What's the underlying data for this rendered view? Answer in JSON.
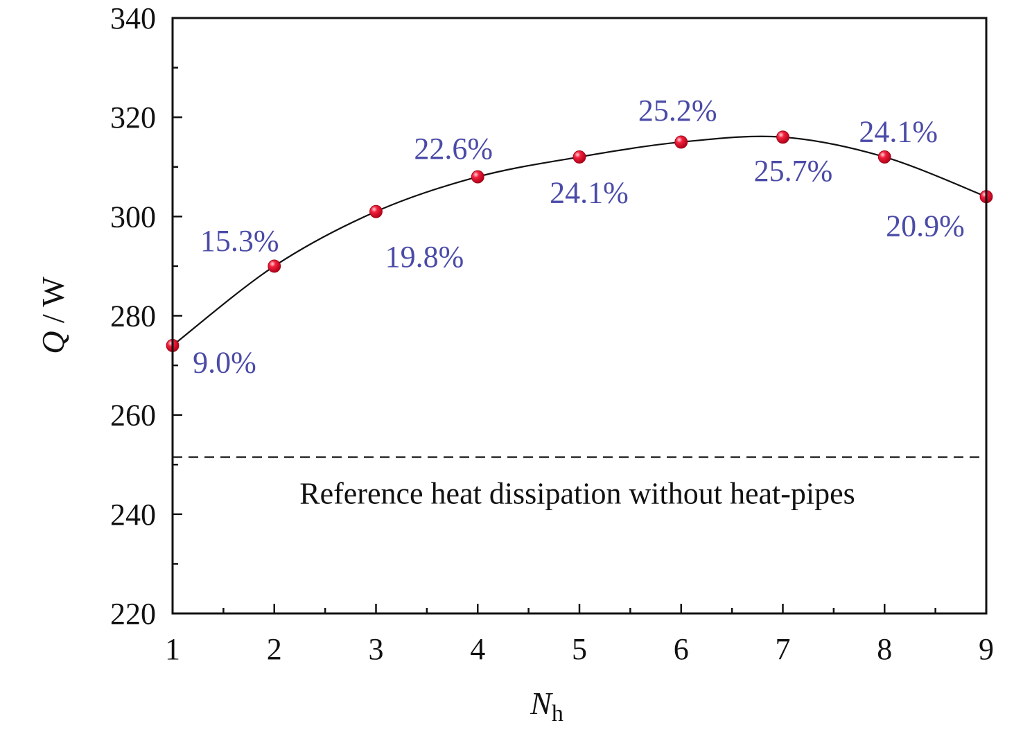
{
  "chart_data": {
    "type": "line",
    "x": [
      1,
      2,
      3,
      4,
      5,
      6,
      7,
      8,
      9
    ],
    "series": [
      {
        "values": [
          274,
          290,
          301,
          308,
          312,
          315,
          316,
          312,
          304
        ],
        "labels": [
          "9.0%",
          "15.3%",
          "19.8%",
          "22.6%",
          "24.1%",
          "25.2%",
          "25.7%",
          "24.1%",
          "20.9%"
        ]
      }
    ],
    "xlim": [
      1,
      9
    ],
    "ylim": [
      220,
      340
    ],
    "x_ticks": [
      "1",
      "2",
      "3",
      "4",
      "5",
      "6",
      "7",
      "8",
      "9"
    ],
    "y_ticks": [
      "220",
      "240",
      "260",
      "280",
      "300",
      "320",
      "340"
    ],
    "xlabel": {
      "main": "N",
      "sub": "h"
    },
    "ylabel": {
      "main": "Q",
      "unit": " / W"
    },
    "reference": {
      "value": 251.5,
      "label": "Reference heat dissipation without heat-pipes"
    },
    "grid": false,
    "colors": {
      "line": "#111111",
      "marker": "#e8112d",
      "data_label": "#4b4ba8",
      "axis": "#111111"
    }
  }
}
